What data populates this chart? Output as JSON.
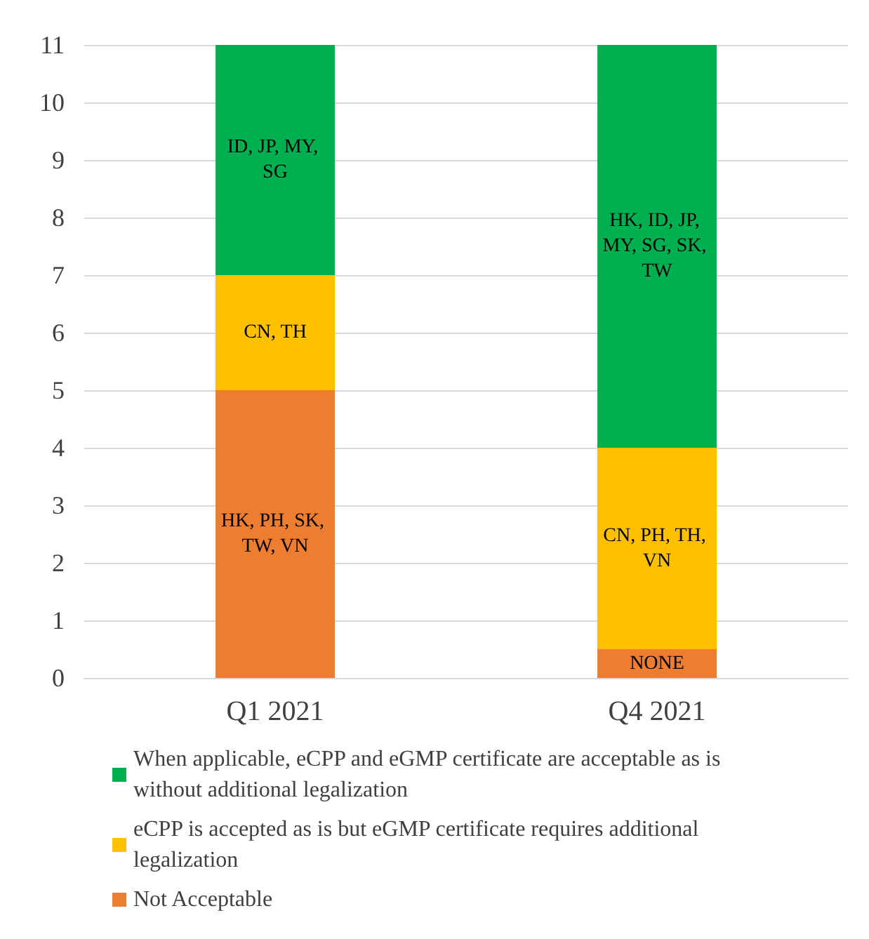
{
  "chart_data": {
    "type": "bar",
    "stacked": true,
    "categories": [
      "Q1 2021",
      "Q4 2021"
    ],
    "series": [
      {
        "name": "Not Acceptable",
        "color": "#ed7d31",
        "values": [
          5,
          0.5
        ],
        "value_labels": [
          "HK, PH, SK, TW, VN",
          "NONE"
        ]
      },
      {
        "name": "eCPP is accepted as is but eGMP certificate requires additional legalization",
        "color": "#ffc000",
        "values": [
          2,
          3.5
        ],
        "value_labels": [
          "CN, TH",
          "CN, PH, TH, VN"
        ]
      },
      {
        "name": "When applicable, eCPP and eGMP certificate are acceptable as is without additional legalization",
        "color": "#00b050",
        "values": [
          4,
          7
        ],
        "value_labels": [
          "ID, JP, MY, SG",
          "HK, ID, JP, MY, SG, SK, TW"
        ]
      }
    ],
    "ylim": [
      0,
      11
    ],
    "yticks": [
      0,
      1,
      2,
      3,
      4,
      5,
      6,
      7,
      8,
      9,
      10,
      11
    ],
    "grid": "y",
    "legend": "bottom"
  }
}
